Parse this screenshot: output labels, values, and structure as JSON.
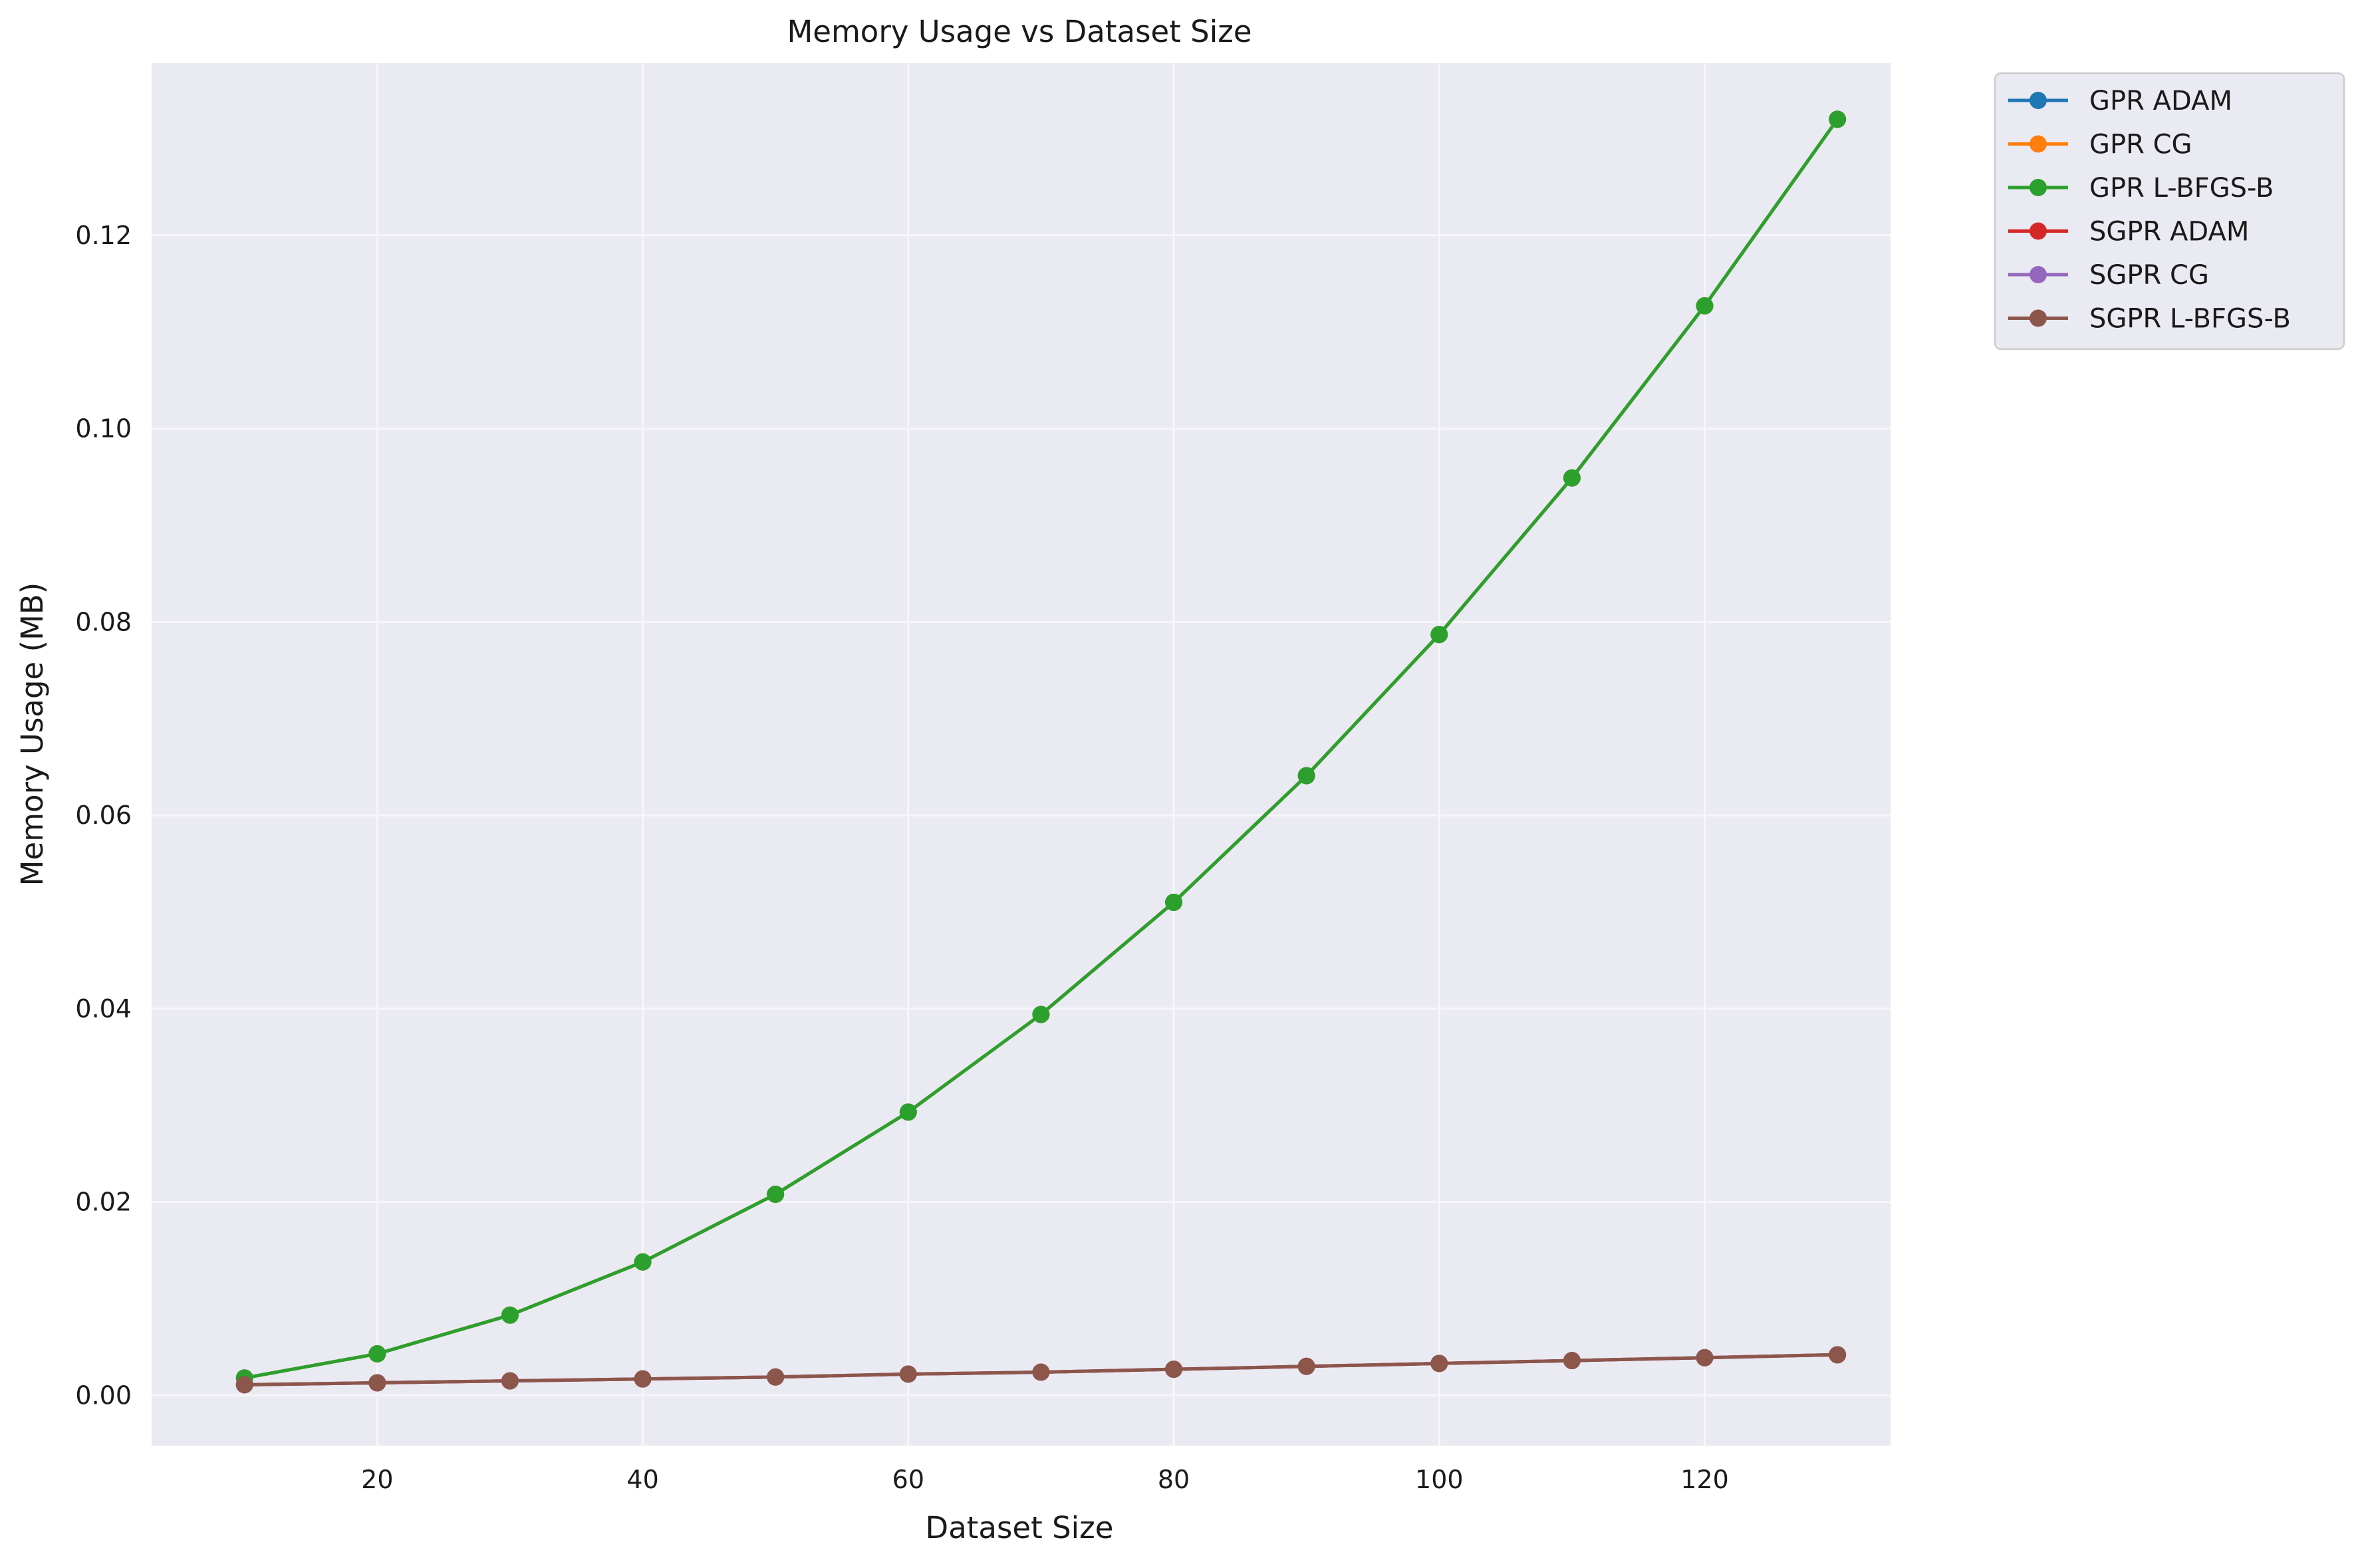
{
  "chart_data": {
    "type": "line",
    "title": "Memory Usage vs Dataset Size",
    "xlabel": "Dataset Size",
    "ylabel": "Memory Usage (MB)",
    "xlim": [
      3,
      134
    ],
    "ylim": [
      -0.0052,
      0.1378
    ],
    "xticks": [
      20,
      40,
      60,
      80,
      100,
      120
    ],
    "xtick_labels": [
      "20",
      "40",
      "60",
      "80",
      "100",
      "120"
    ],
    "yticks": [
      0.0,
      0.02,
      0.04,
      0.06,
      0.08,
      0.1,
      0.12
    ],
    "ytick_labels": [
      "0.00",
      "0.02",
      "0.04",
      "0.06",
      "0.08",
      "0.10",
      "0.12"
    ],
    "grid": true,
    "legend_position": "outside-top-right",
    "x": [
      10,
      20,
      30,
      40,
      50,
      60,
      70,
      80,
      90,
      100,
      110,
      120,
      130
    ],
    "series": [
      {
        "name": "GPR ADAM",
        "color": "#1f77b4",
        "values": [
          0.0018,
          0.0043,
          0.0083,
          0.0138,
          0.0208,
          0.0293,
          0.0394,
          0.051,
          0.0641,
          0.0787,
          0.0949,
          0.1127,
          0.132
        ]
      },
      {
        "name": "GPR CG",
        "color": "#ff7f0e",
        "values": [
          0.0018,
          0.0043,
          0.0083,
          0.0138,
          0.0208,
          0.0293,
          0.0394,
          0.051,
          0.0641,
          0.0787,
          0.0949,
          0.1127,
          0.132
        ]
      },
      {
        "name": "GPR L-BFGS-B",
        "color": "#2ca02c",
        "values": [
          0.0018,
          0.0043,
          0.0083,
          0.0138,
          0.0208,
          0.0293,
          0.0394,
          0.051,
          0.0641,
          0.0787,
          0.0949,
          0.1127,
          0.132
        ]
      },
      {
        "name": "SGPR ADAM",
        "color": "#d62728",
        "values": [
          0.0011,
          0.0013,
          0.0015,
          0.0017,
          0.0019,
          0.0022,
          0.0024,
          0.0027,
          0.003,
          0.0033,
          0.0036,
          0.0039,
          0.0042
        ]
      },
      {
        "name": "SGPR CG",
        "color": "#9467bd",
        "values": [
          0.0011,
          0.0013,
          0.0015,
          0.0017,
          0.0019,
          0.0022,
          0.0024,
          0.0027,
          0.003,
          0.0033,
          0.0036,
          0.0039,
          0.0042
        ]
      },
      {
        "name": "SGPR L-BFGS-B",
        "color": "#8c564b",
        "values": [
          0.0011,
          0.0013,
          0.0015,
          0.0017,
          0.0019,
          0.0022,
          0.0024,
          0.0027,
          0.003,
          0.0033,
          0.0036,
          0.0039,
          0.0042
        ]
      }
    ]
  },
  "colors": {
    "plot_background": "#eaeaf2",
    "grid": "#f6f6fa",
    "legend_background": "#eaeaf2",
    "legend_border": "#cccccc"
  }
}
